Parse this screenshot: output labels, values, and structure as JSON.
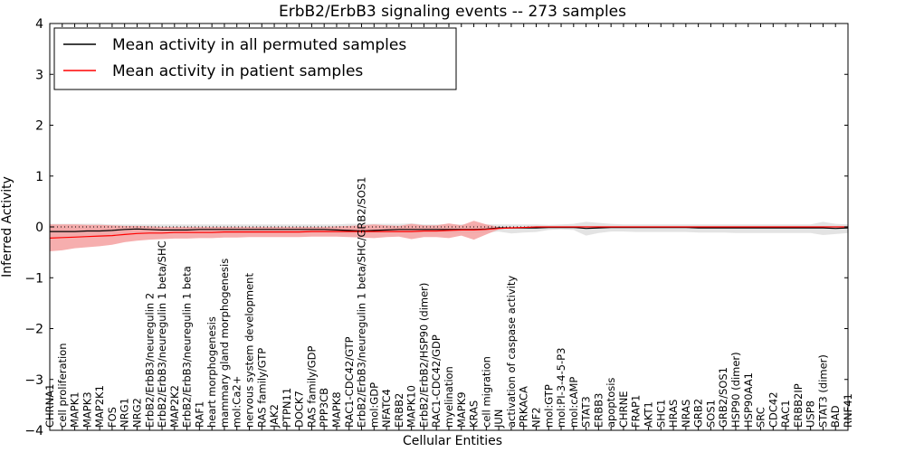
{
  "chart_data": {
    "type": "line",
    "title": "ErbB2/ErbB3 signaling events -- 273 samples",
    "xlabel": "Cellular Entities",
    "ylabel": "Inferred Activity",
    "ylim": [
      -4,
      4
    ],
    "yticks": [
      -4,
      -3,
      -2,
      -1,
      0,
      1,
      2,
      3,
      4
    ],
    "legend": {
      "placement": "top-left",
      "entries": [
        {
          "label": "Mean activity in all permuted samples",
          "color": "#000000"
        },
        {
          "label": "Mean activity in patient samples",
          "color": "#ff0000"
        }
      ]
    },
    "categories": [
      "CHRNA1",
      "cell proliferation",
      "MAPK1",
      "MAPK3",
      "MAP2K1",
      "FOS",
      "NRG1",
      "NRG2",
      "ErbB2/ErbB3/neuregulin 2",
      "ErbB2/ErbB3/neuregulin 1 beta/SHC",
      "MAP2K2",
      "ErbB2/ErbB3/neuregulin 1 beta",
      "RAF1",
      "heart morphogenesis",
      "mammary gland morphogenesis",
      "mol:Ca2+",
      "nervous system development",
      "RAS family/GTP",
      "JAK2",
      "PTPN11",
      "DOCK7",
      "RAS family/GDP",
      "PPP3CB",
      "MAPK8",
      "RAC1-CDC42/GTP",
      "ErbB2/ErbB3/neuregulin 1 beta/SHC/GRB2/SOS1",
      "mol:GDP",
      "NFATC4",
      "ERBB2",
      "MAPK10",
      "ErbB2/ErbB2/HSP90 (dimer)",
      "RAC1-CDC42/GDP",
      "myelination",
      "MAPK9",
      "KRAS",
      "cell migration",
      "JUN",
      "activation of caspase activity",
      "PRKACA",
      "NF2",
      "mol:GTP",
      "mol:PI-3-4-5-P3",
      "mol:cAMP",
      "STAT3",
      "ERBB3",
      "apoptosis",
      "CHRNE",
      "FRAP1",
      "AKT1",
      "SHC1",
      "HRAS",
      "NRAS",
      "GRB2",
      "SOS1",
      "GRB2/SOS1",
      "HSP90 (dimer)",
      "HSP90AA1",
      "SRC",
      "CDC42",
      "RAC1",
      "ERBB2IP",
      "USP8",
      "STAT3 (dimer)",
      "BAD",
      "RNF41"
    ],
    "series": [
      {
        "name": "Mean activity in all permuted samples",
        "color": "#000000",
        "values": [
          -0.09,
          -0.09,
          -0.09,
          -0.08,
          -0.08,
          -0.07,
          -0.05,
          -0.04,
          -0.05,
          -0.06,
          -0.06,
          -0.06,
          -0.05,
          -0.05,
          -0.05,
          -0.05,
          -0.05,
          -0.05,
          -0.05,
          -0.05,
          -0.05,
          -0.05,
          -0.05,
          -0.06,
          -0.07,
          -0.08,
          -0.07,
          -0.06,
          -0.05,
          -0.05,
          -0.05,
          -0.05,
          -0.05,
          -0.05,
          -0.05,
          -0.04,
          -0.02,
          -0.02,
          -0.02,
          -0.02,
          -0.01,
          -0.01,
          -0.01,
          -0.03,
          -0.02,
          -0.01,
          -0.01,
          -0.01,
          -0.01,
          -0.01,
          -0.01,
          -0.01,
          -0.02,
          -0.02,
          -0.02,
          -0.02,
          -0.02,
          -0.02,
          -0.02,
          -0.02,
          -0.02,
          -0.02,
          -0.02,
          -0.03,
          -0.02
        ]
      },
      {
        "name": "Mean activity in patient samples",
        "color": "#ff0000",
        "values": [
          -0.22,
          -0.21,
          -0.2,
          -0.19,
          -0.18,
          -0.17,
          -0.15,
          -0.13,
          -0.12,
          -0.12,
          -0.11,
          -0.11,
          -0.11,
          -0.11,
          -0.1,
          -0.1,
          -0.1,
          -0.1,
          -0.1,
          -0.1,
          -0.1,
          -0.09,
          -0.09,
          -0.09,
          -0.09,
          -0.09,
          -0.09,
          -0.09,
          -0.09,
          -0.09,
          -0.08,
          -0.08,
          -0.07,
          -0.06,
          -0.06,
          -0.05,
          -0.03,
          -0.02,
          -0.01,
          0.0,
          0.0,
          0.0,
          0.0,
          0.0,
          0.0,
          0.0,
          0.0,
          0.0,
          0.0,
          0.0,
          0.0,
          0.0,
          0.0,
          0.0,
          0.0,
          0.0,
          0.0,
          0.0,
          0.0,
          0.0,
          0.0,
          0.0,
          0.0,
          0.0,
          0.0
        ]
      }
    ],
    "bands": [
      {
        "name": "permuted spread",
        "color": "#cccccc",
        "upper": [
          0.06,
          0.06,
          0.06,
          0.06,
          0.06,
          0.05,
          0.05,
          0.05,
          0.05,
          0.05,
          0.05,
          0.05,
          0.05,
          0.05,
          0.05,
          0.05,
          0.05,
          0.05,
          0.05,
          0.05,
          0.05,
          0.05,
          0.05,
          0.05,
          0.06,
          0.06,
          0.06,
          0.06,
          0.06,
          0.07,
          0.05,
          0.05,
          0.05,
          0.05,
          0.05,
          0.05,
          0.05,
          0.05,
          0.05,
          0.05,
          0.04,
          0.05,
          0.06,
          0.1,
          0.08,
          0.06,
          0.05,
          0.05,
          0.05,
          0.05,
          0.05,
          0.05,
          0.05,
          0.05,
          0.05,
          0.05,
          0.05,
          0.05,
          0.05,
          0.05,
          0.05,
          0.05,
          0.1,
          0.06,
          0.05
        ],
        "lower": [
          -0.2,
          -0.2,
          -0.2,
          -0.19,
          -0.18,
          -0.17,
          -0.14,
          -0.12,
          -0.12,
          -0.13,
          -0.13,
          -0.13,
          -0.12,
          -0.12,
          -0.12,
          -0.12,
          -0.12,
          -0.12,
          -0.12,
          -0.12,
          -0.12,
          -0.12,
          -0.12,
          -0.13,
          -0.14,
          -0.15,
          -0.13,
          -0.12,
          -0.12,
          -0.12,
          -0.12,
          -0.12,
          -0.12,
          -0.12,
          -0.12,
          -0.11,
          -0.09,
          -0.13,
          -0.11,
          -0.1,
          -0.06,
          -0.05,
          -0.06,
          -0.17,
          -0.12,
          -0.09,
          -0.09,
          -0.1,
          -0.1,
          -0.1,
          -0.1,
          -0.1,
          -0.11,
          -0.11,
          -0.11,
          -0.12,
          -0.12,
          -0.12,
          -0.12,
          -0.12,
          -0.12,
          -0.12,
          -0.16,
          -0.14,
          -0.12
        ]
      },
      {
        "name": "patient spread",
        "color": "#f4a0a0",
        "upper": [
          0.05,
          0.05,
          0.05,
          0.04,
          0.04,
          0.03,
          0.02,
          0.02,
          0.01,
          0.0,
          0.0,
          0.0,
          0.0,
          0.0,
          0.0,
          0.0,
          0.0,
          0.0,
          0.0,
          0.0,
          0.0,
          0.0,
          0.0,
          0.01,
          0.02,
          0.03,
          0.05,
          0.03,
          0.02,
          0.06,
          0.03,
          0.03,
          0.07,
          0.03,
          0.12,
          0.05,
          0.0,
          0.0,
          0.0,
          0.0,
          0.0,
          0.0,
          0.0,
          0.0,
          0.0,
          0.0,
          0.0,
          0.0,
          0.0,
          0.0,
          0.0,
          0.0,
          0.0,
          0.0,
          0.0,
          0.0,
          0.0,
          0.0,
          0.0,
          0.0,
          0.0,
          0.0,
          0.0,
          0.0,
          0.0
        ],
        "lower": [
          -0.48,
          -0.46,
          -0.42,
          -0.4,
          -0.38,
          -0.35,
          -0.3,
          -0.27,
          -0.25,
          -0.24,
          -0.23,
          -0.23,
          -0.22,
          -0.22,
          -0.21,
          -0.21,
          -0.2,
          -0.2,
          -0.2,
          -0.2,
          -0.2,
          -0.19,
          -0.19,
          -0.19,
          -0.2,
          -0.21,
          -0.22,
          -0.2,
          -0.19,
          -0.24,
          -0.2,
          -0.2,
          -0.22,
          -0.17,
          -0.25,
          -0.15,
          -0.05,
          -0.02,
          -0.01,
          0.0,
          0.0,
          0.0,
          0.0,
          0.0,
          0.0,
          0.0,
          0.0,
          0.0,
          0.0,
          0.0,
          0.0,
          0.0,
          0.0,
          0.0,
          0.0,
          0.0,
          0.0,
          0.0,
          0.0,
          0.0,
          0.0,
          0.0,
          0.0,
          0.0,
          0.0
        ]
      }
    ]
  }
}
